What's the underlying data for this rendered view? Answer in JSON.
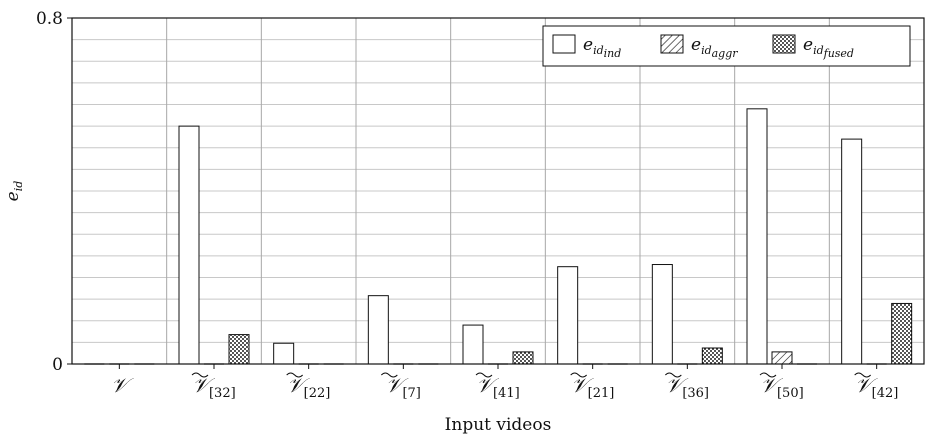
{
  "chart_data": {
    "type": "bar",
    "xlabel": "Input videos",
    "ylabel": "e",
    "ylabel_sub": "id",
    "ylim": [
      0,
      0.8
    ],
    "yticks": [
      "0",
      "0.8"
    ],
    "grid": true,
    "legend_position": "top-right",
    "categories": [
      {
        "base": "𝒱",
        "tilde": false,
        "sub": ""
      },
      {
        "base": "𝒱",
        "tilde": true,
        "sub": "[32]"
      },
      {
        "base": "𝒱",
        "tilde": true,
        "sub": "[22]"
      },
      {
        "base": "𝒱",
        "tilde": true,
        "sub": "[7]"
      },
      {
        "base": "𝒱",
        "tilde": true,
        "sub": "[41]"
      },
      {
        "base": "𝒱",
        "tilde": true,
        "sub": "[21]"
      },
      {
        "base": "𝒱",
        "tilde": true,
        "sub": "[36]"
      },
      {
        "base": "𝒱",
        "tilde": true,
        "sub": "[50]"
      },
      {
        "base": "𝒱",
        "tilde": true,
        "sub": "[42]"
      }
    ],
    "series": [
      {
        "name": "e",
        "sub": "id",
        "subsub": "ind",
        "pattern": "none",
        "values": [
          0,
          0.55,
          0.048,
          0.158,
          0.09,
          0.225,
          0.23,
          0.59,
          0.52
        ]
      },
      {
        "name": "e",
        "sub": "id",
        "subsub": "aggr",
        "pattern": "hatch",
        "values": [
          0,
          0,
          0,
          0,
          0,
          0,
          0,
          0.028,
          0
        ]
      },
      {
        "name": "e",
        "sub": "id",
        "subsub": "fused",
        "pattern": "dots",
        "values": [
          0,
          0.068,
          0,
          0,
          0.028,
          0,
          0.037,
          0,
          0.14
        ]
      }
    ]
  }
}
